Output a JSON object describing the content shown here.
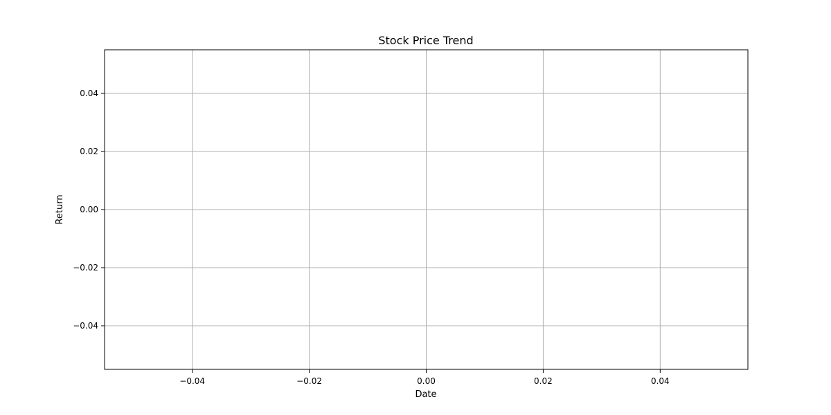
{
  "chart_data": {
    "type": "line",
    "title": "Stock Price Trend",
    "xlabel": "Date",
    "ylabel": "Return",
    "xlim": [
      -0.055,
      0.055
    ],
    "ylim": [
      -0.055,
      0.055
    ],
    "x_ticks": [
      -0.04,
      -0.02,
      0.0,
      0.02,
      0.04
    ],
    "x_tick_labels": [
      "−0.04",
      "−0.02",
      "0.00",
      "0.02",
      "0.04"
    ],
    "y_ticks": [
      -0.04,
      -0.02,
      0.0,
      0.02,
      0.04
    ],
    "y_tick_labels": [
      "−0.04",
      "−0.02",
      "0.00",
      "0.02",
      "0.04"
    ],
    "grid": true,
    "series": [],
    "colors": {
      "grid": "#b0b0b0",
      "axis": "#000000",
      "background": "#ffffff"
    }
  }
}
